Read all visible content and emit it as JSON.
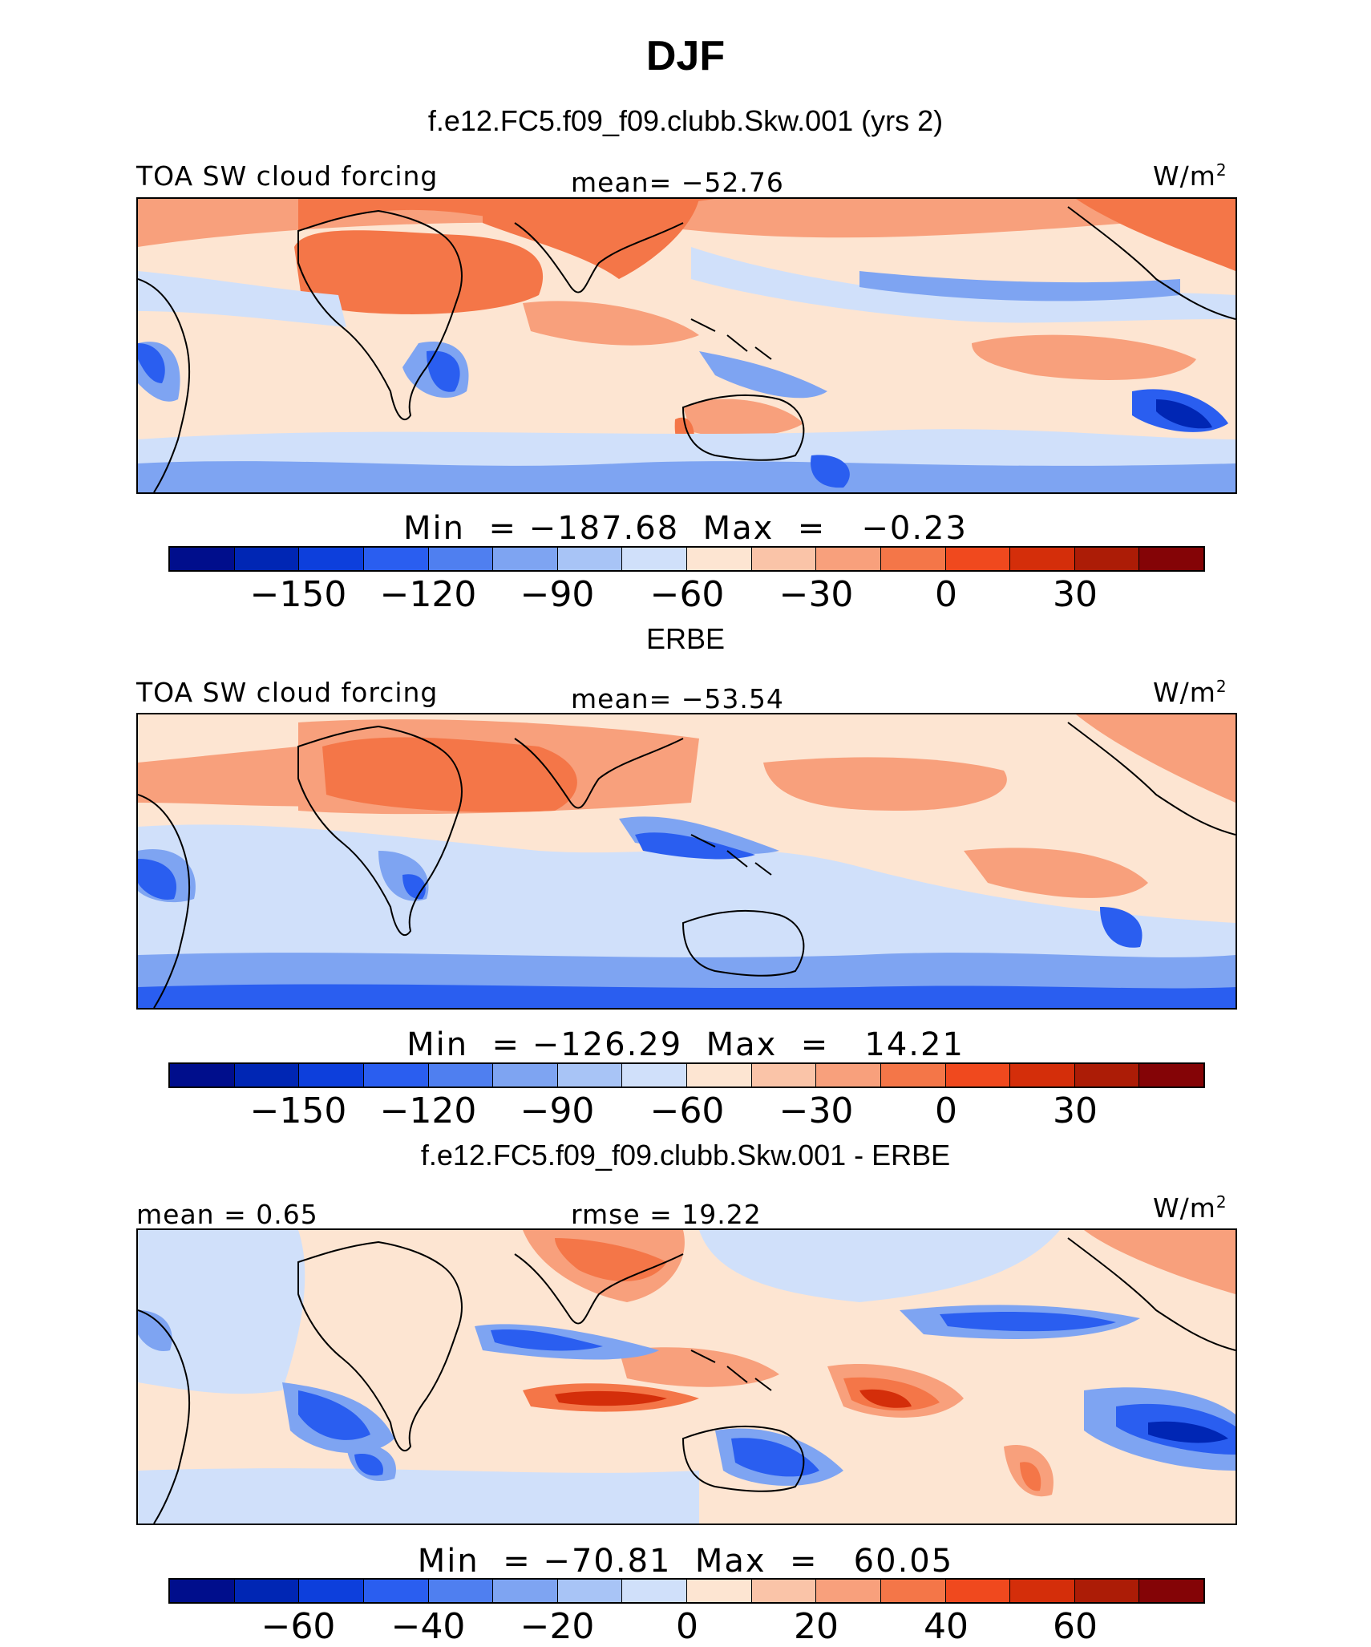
{
  "title": "DJF",
  "panels": [
    {
      "subtitle": "f.e12.FC5.f09_f09.clubb.Skw.001 (yrs 2)",
      "left_label": "TOA SW cloud forcing",
      "center_label": "mean= −52.76",
      "units": "W/m",
      "units_sup": "2",
      "minmax": "Min  = −187.68  Max  =   −0.23",
      "ticks": [
        "−150",
        "−120",
        "−90",
        "−60",
        "−30",
        "0",
        "30"
      ],
      "icon": "world-map-field-icon"
    },
    {
      "subtitle": "ERBE",
      "left_label": "TOA SW cloud forcing",
      "center_label": "mean= −53.54",
      "units": "W/m",
      "units_sup": "2",
      "minmax": "Min  = −126.29  Max  =   14.21",
      "ticks": [
        "−150",
        "−120",
        "−90",
        "−60",
        "−30",
        "0",
        "30"
      ],
      "icon": "world-map-field-icon"
    },
    {
      "subtitle": "f.e12.FC5.f09_f09.clubb.Skw.001 - ERBE",
      "left_label": "mean =   0.65",
      "center_label": "rmse =   19.22",
      "units": "W/m",
      "units_sup": "2",
      "minmax": "Min  = −70.81  Max  =   60.05",
      "ticks": [
        "−60",
        "−40",
        "−20",
        "0",
        "20",
        "40",
        "60"
      ],
      "icon": "world-map-field-icon"
    }
  ],
  "colorbar_colors": [
    "#000e8c",
    "#0026b4",
    "#0d3fdc",
    "#2a5ef0",
    "#4f7ff0",
    "#7ea4f2",
    "#a8c4f6",
    "#d0e0fa",
    "#fde5d2",
    "#fac4a8",
    "#f8a07c",
    "#f47648",
    "#f0491e",
    "#d42e0a",
    "#ac1c06",
    "#840406"
  ],
  "field_colors": {
    "deep_blue": "#2a5ef0",
    "mid_blue": "#7ea4f2",
    "light_blue": "#d0e0fa",
    "cream": "#fde5d2",
    "salmon": "#f8a07c",
    "orange": "#f47648",
    "dark_red": "#d42e0a",
    "darkest_blue": "#0026b4"
  }
}
